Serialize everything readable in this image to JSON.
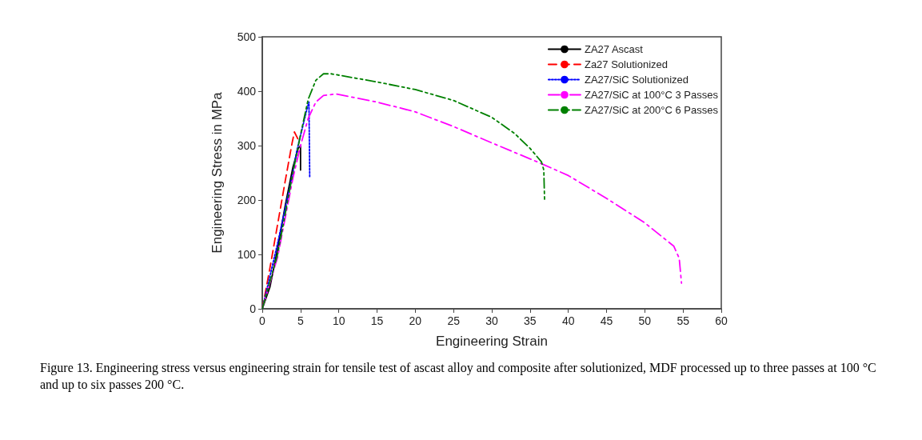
{
  "chart_data": {
    "type": "line",
    "xlabel": "Engineering Strain",
    "ylabel": "Engineering Stress in MPa",
    "xlim": [
      0,
      60
    ],
    "xticks": [
      0,
      5,
      10,
      15,
      20,
      25,
      30,
      35,
      40,
      45,
      50,
      55,
      60
    ],
    "ylim": [
      0,
      500
    ],
    "yticks": [
      0,
      100,
      200,
      300,
      400,
      500
    ],
    "grid": false,
    "legend": "top right",
    "marker": "none",
    "annotations": [
      "Figure 13. Engineering stress versus engineering strain for tensile test of ascast alloy and composite after solutionized, MDF processed up to three passes at 100 °C and up to six passes 200 °C."
    ],
    "series": [
      {
        "name": "ZA27 Ascast",
        "color": "#000000",
        "line_style": "solid",
        "x": [
          0,
          1,
          2,
          3,
          4,
          4.7,
          5,
          5
        ],
        "values": [
          0,
          40,
          110,
          190,
          260,
          295,
          300,
          255
        ]
      },
      {
        "name": "Za27 Solutionized",
        "color": "#ff0000",
        "line_style": "dashed",
        "x": [
          0,
          1,
          2,
          3,
          3.9,
          4.2,
          4.7
        ],
        "values": [
          0,
          75,
          155,
          235,
          305,
          325,
          311
        ]
      },
      {
        "name": "ZA27/SiC Solutionized",
        "color": "#0000ff",
        "line_style": "dotted",
        "x": [
          0,
          2,
          4,
          4.5,
          5.2,
          5.8,
          6.1,
          6.2
        ],
        "values": [
          0,
          120,
          250,
          290,
          330,
          365,
          380,
          243
        ]
      },
      {
        "name": "ZA27/SiC at 100°C 3 Passes",
        "color": "#ff00ff",
        "line_style": "dashdot",
        "x": [
          0,
          2,
          4,
          5,
          6,
          7,
          8,
          9.6,
          15,
          20,
          25,
          30,
          36.8,
          40,
          45,
          50,
          53.8,
          54.5,
          54.8
        ],
        "values": [
          0,
          95,
          240,
          300,
          350,
          380,
          392,
          395,
          380,
          362,
          335,
          305,
          265,
          245,
          203,
          158,
          115,
          93,
          47
        ]
      },
      {
        "name": "ZA27/SiC at 200°C 6 Passes",
        "color": "#008000",
        "line_style": "dashdotdot",
        "x": [
          0,
          2,
          4,
          5,
          6,
          7,
          8,
          9,
          15,
          20,
          25,
          30,
          33,
          35,
          36.5,
          36.8,
          36.9
        ],
        "values": [
          0,
          100,
          250,
          320,
          385,
          420,
          432,
          432,
          417,
          403,
          383,
          352,
          322,
          295,
          270,
          255,
          200
        ]
      }
    ]
  }
}
